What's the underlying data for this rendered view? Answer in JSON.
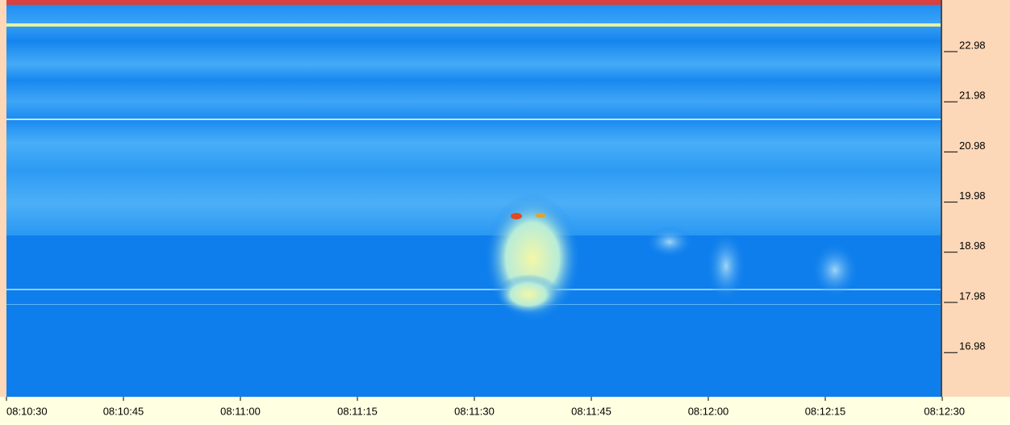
{
  "y_axis": {
    "ticks": [
      22.98,
      21.98,
      20.98,
      19.98,
      18.98,
      17.98,
      16.98
    ]
  },
  "x_axis": {
    "ticks": [
      "08:10:30",
      "08:10:45",
      "08:11:00",
      "08:11:15",
      "08:11:30",
      "08:11:45",
      "08:12:00",
      "08:12:15",
      "08:12:30"
    ]
  }
}
